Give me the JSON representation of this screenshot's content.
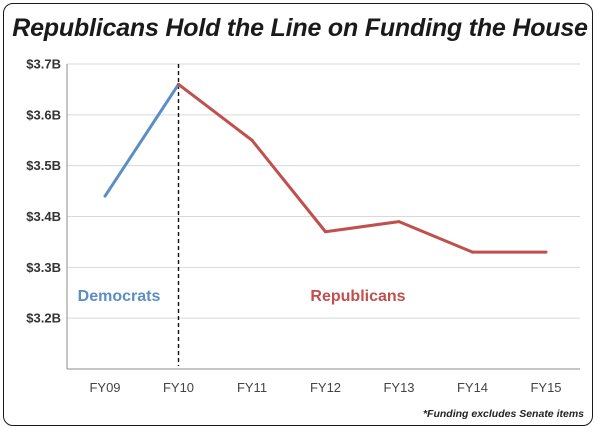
{
  "chart_data": {
    "type": "line",
    "title": "Republicans Hold the Line on Funding the House",
    "categories": [
      "FY09",
      "FY10",
      "FY11",
      "FY12",
      "FY13",
      "FY14",
      "FY15"
    ],
    "y_ticks": [
      "$3.2B",
      "$3.3B",
      "$3.4B",
      "$3.5B",
      "$3.6B",
      "$3.7B"
    ],
    "ylim": [
      3.1,
      3.7
    ],
    "series": [
      {
        "name": "Democrats",
        "color": "#5b8ec5",
        "x": [
          "FY09",
          "FY10"
        ],
        "values": [
          3.44,
          3.66
        ]
      },
      {
        "name": "Republicans",
        "color": "#c0504d",
        "x": [
          "FY10",
          "FY11",
          "FY12",
          "FY13",
          "FY14",
          "FY15"
        ],
        "values": [
          3.66,
          3.55,
          3.37,
          3.39,
          3.33,
          3.33
        ]
      }
    ],
    "divider_at": "FY10",
    "footnote": "*Funding excludes Senate items",
    "xlabel": "",
    "ylabel": "",
    "grid": true
  }
}
